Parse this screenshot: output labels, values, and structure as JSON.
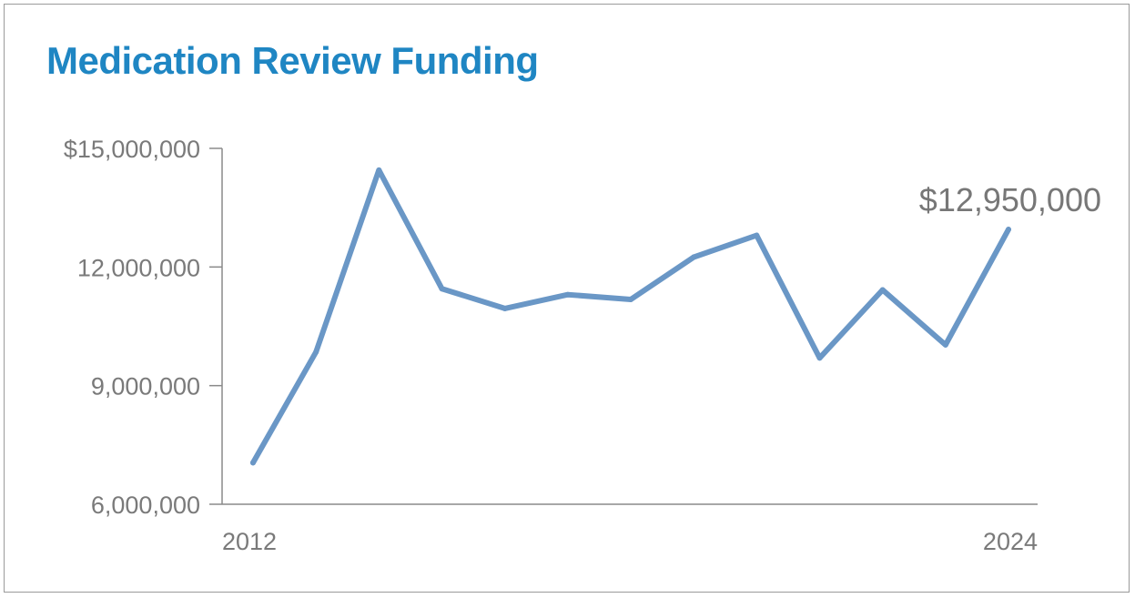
{
  "chart_data": {
    "type": "line",
    "title": "Medication Review Funding",
    "xlabel": "",
    "ylabel": "",
    "x": [
      2012,
      2013,
      2014,
      2015,
      2016,
      2017,
      2018,
      2019,
      2020,
      2021,
      2022,
      2023,
      2024
    ],
    "series": [
      {
        "values": [
          7050000,
          9850000,
          14450000,
          11450000,
          10950000,
          11300000,
          11180000,
          12250000,
          12800000,
          9700000,
          11420000,
          10030000,
          12950000
        ]
      }
    ],
    "xlim": [
      2012,
      2024
    ],
    "ylim": [
      6000000,
      15000000
    ],
    "x_tick_labels": [
      "2012",
      "2024"
    ],
    "y_ticks": [
      6000000,
      9000000,
      12000000,
      15000000
    ],
    "y_tick_labels": [
      "6,000,000",
      "9,000,000",
      "12,000,000",
      "$15,000,000"
    ],
    "annotation": "$12,950,000",
    "grid": false,
    "legend": "none",
    "line_color": "#6a97c6",
    "title_color": "#1f86c3",
    "axis_color": "#8a8a8a",
    "text_color": "#7a7a7a"
  }
}
